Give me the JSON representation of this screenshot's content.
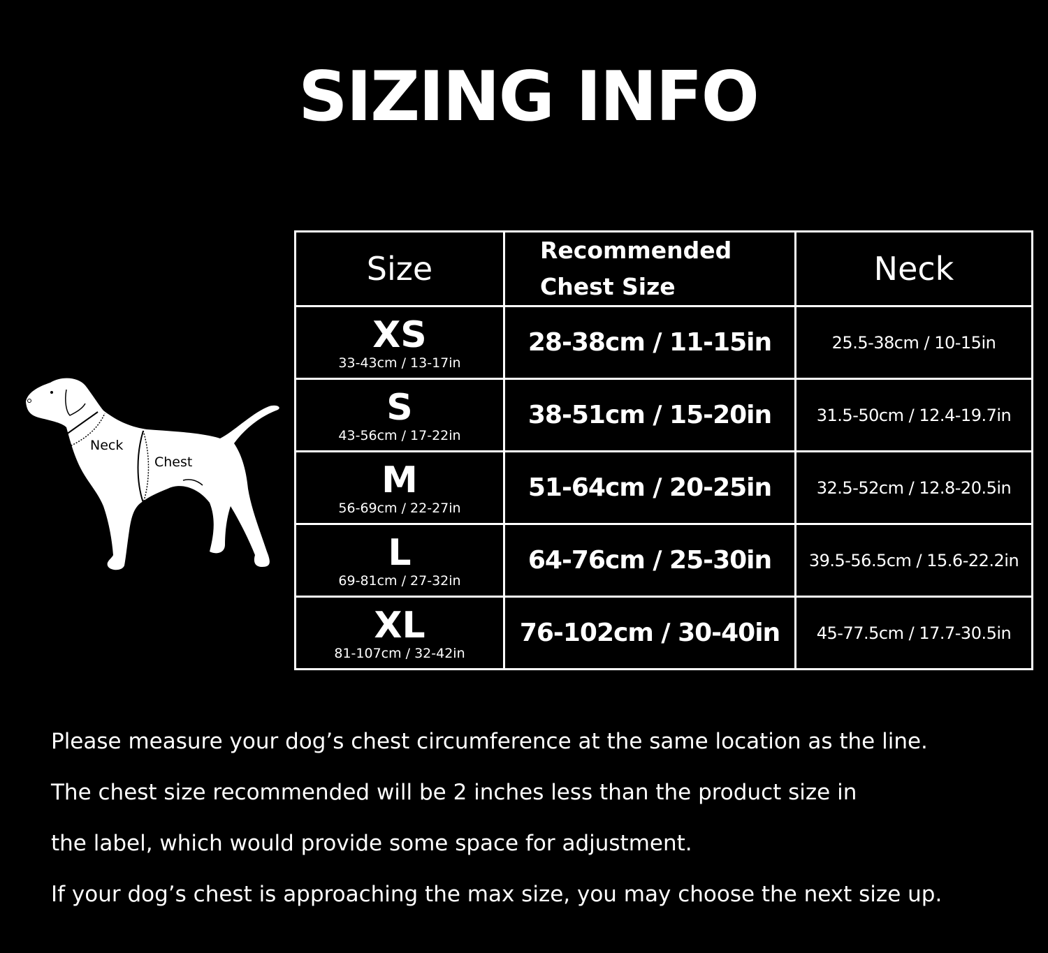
{
  "title": "SIZING INFO",
  "diagram": {
    "neck_label": "Neck",
    "chest_label": "Chest"
  },
  "table": {
    "headers": {
      "size": "Size",
      "chest_line1": "Recommended",
      "chest_line2": "Chest Size",
      "neck": "Neck"
    },
    "rows": [
      {
        "size": "XS",
        "size_range": "33-43cm / 13-17in",
        "chest": "28-38cm / 11-15in",
        "neck": "25.5-38cm / 10-15in"
      },
      {
        "size": "S",
        "size_range": "43-56cm / 17-22in",
        "chest": "38-51cm / 15-20in",
        "neck": "31.5-50cm / 12.4-19.7in"
      },
      {
        "size": "M",
        "size_range": "56-69cm / 22-27in",
        "chest": "51-64cm / 20-25in",
        "neck": "32.5-52cm / 12.8-20.5in"
      },
      {
        "size": "L",
        "size_range": "69-81cm / 27-32in",
        "chest": "64-76cm / 25-30in",
        "neck": "39.5-56.5cm / 15.6-22.2in"
      },
      {
        "size": "XL",
        "size_range": "81-107cm / 32-42in",
        "chest": "76-102cm / 30-40in",
        "neck": "45-77.5cm / 17.7-30.5in"
      }
    ]
  },
  "notes": [
    "Please measure your dog’s chest circumference at the same location as the line.",
    "The chest size recommended will be 2 inches less than the product size in",
    "the label, which would provide some space for adjustment.",
    "If your dog’s chest is approaching the max size, you may choose the next size up."
  ]
}
